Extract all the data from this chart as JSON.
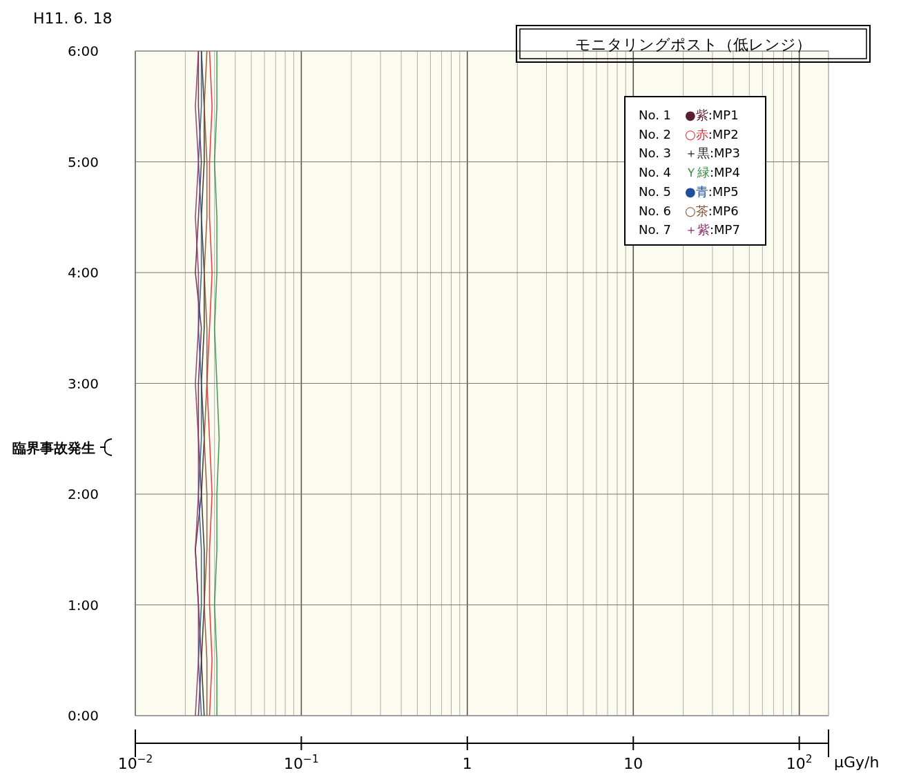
{
  "chart_data": {
    "type": "line",
    "title": "モニタリングポスト（低レンジ）",
    "xlabel": "μGy/h",
    "log": "x",
    "grid": true,
    "legend": "top right",
    "marker": "none",
    "line_style": "solid",
    "xlim": [
      0.01,
      150
    ],
    "xticks": [
      {
        "value": 0.01,
        "label": "10$^{−2}$"
      },
      {
        "value": 0.1,
        "label": "10$^{−1}$"
      },
      1,
      10,
      {
        "value": 100,
        "label": "10$^{2}$"
      }
    ],
    "ylim": [
      0,
      6
    ],
    "yticks": [
      {
        "value": 0,
        "label": "0:00"
      },
      {
        "value": 1,
        "label": "1:00"
      },
      {
        "value": 2,
        "label": "2:00"
      },
      {
        "value": 3,
        "label": "3:00"
      },
      {
        "value": 4,
        "label": "4:00"
      },
      {
        "value": 5,
        "label": "5:00"
      },
      {
        "value": 6,
        "label": "6:00"
      }
    ],
    "annotations": [
      "H11. 6. 18",
      "臨界事故発生"
    ],
    "series": [
      {
        "name": "No. 1 ●紫:MP1",
        "color": "#5a1e32",
        "x": [
          0.024,
          0.025,
          0.024,
          0.023,
          0.025,
          0.024,
          0.024,
          0.025,
          0.023,
          0.024,
          0.025,
          0.024,
          0.024
        ],
        "values": [
          0,
          0.5,
          1,
          1.5,
          2,
          2.5,
          3,
          3.5,
          4,
          4.5,
          5,
          5.5,
          6
        ]
      },
      {
        "name": "No. 2 ○赤:MP2",
        "color": "#e8222a",
        "x": [
          0.028,
          0.029,
          0.028,
          0.028,
          0.029,
          0.028,
          0.027,
          0.028,
          0.029,
          0.028,
          0.028,
          0.029,
          0.028
        ],
        "values": [
          0,
          0.5,
          1,
          1.5,
          2,
          2.5,
          3,
          3.5,
          4,
          4.5,
          5,
          5.5,
          6
        ]
      },
      {
        "name": "No. 3 ＋黒:MP3",
        "color": "#222222",
        "x": [
          0.026,
          0.025,
          0.026,
          0.026,
          0.025,
          0.026,
          0.025,
          0.026,
          0.026,
          0.025,
          0.026,
          0.026,
          0.025
        ],
        "values": [
          0,
          0.5,
          1,
          1.5,
          2,
          2.5,
          3,
          3.5,
          4,
          4.5,
          5,
          5.5,
          6
        ]
      },
      {
        "name": "No. 4 Ｙ緑:MP4",
        "color": "#2e8b3a",
        "x": [
          0.031,
          0.031,
          0.03,
          0.031,
          0.031,
          0.032,
          0.031,
          0.03,
          0.031,
          0.031,
          0.03,
          0.031,
          0.031
        ],
        "values": [
          0,
          0.5,
          1,
          1.5,
          2,
          2.5,
          3,
          3.5,
          4,
          4.5,
          5,
          5.5,
          6
        ]
      },
      {
        "name": "No. 5 ●青:MP5",
        "color": "#1f4e9a",
        "x": [
          0.025,
          0.024,
          0.025,
          0.025,
          0.024,
          0.025,
          0.025,
          0.024,
          0.025,
          0.025,
          0.024,
          0.025,
          0.025
        ],
        "values": [
          0,
          0.5,
          1,
          1.5,
          2,
          2.5,
          3,
          3.5,
          4,
          4.5,
          5,
          5.5,
          6
        ]
      },
      {
        "name": "No. 6 ○茶:MP6",
        "color": "#8b4a2a",
        "x": [
          0.027,
          0.027,
          0.026,
          0.027,
          0.027,
          0.026,
          0.027,
          0.027,
          0.026,
          0.027,
          0.027,
          0.026,
          0.027
        ],
        "values": [
          0,
          0.5,
          1,
          1.5,
          2,
          2.5,
          3,
          3.5,
          4,
          4.5,
          5,
          5.5,
          6
        ]
      },
      {
        "name": "No. 7 ＋紫:MP7",
        "color": "#8b2a6a",
        "x": [
          0.023,
          0.024,
          0.024,
          0.023,
          0.024,
          0.024,
          0.023,
          0.024,
          0.024,
          0.023,
          0.024,
          0.023,
          0.024
        ],
        "values": [
          0,
          0.5,
          1,
          1.5,
          2,
          2.5,
          3,
          3.5,
          4,
          4.5,
          5,
          5.5,
          6
        ]
      }
    ]
  }
}
